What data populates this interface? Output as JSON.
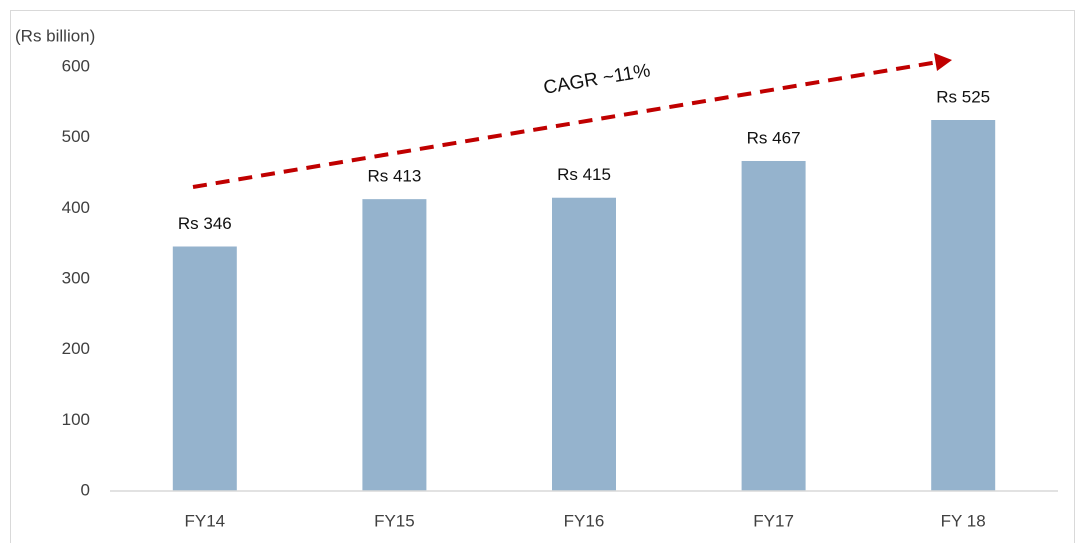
{
  "chart_data": {
    "type": "bar",
    "y_axis_label": "(Rs billion)",
    "annotation": "CAGR ~11%",
    "categories": [
      "FY14",
      "FY15",
      "FY16",
      "FY17",
      "FY 18"
    ],
    "values": [
      346,
      413,
      415,
      467,
      525
    ],
    "value_labels": [
      "Rs 346",
      "Rs 413",
      "Rs 415",
      "Rs 467",
      "Rs 525"
    ],
    "color": "#95b3cd",
    "ylim": [
      0,
      600
    ],
    "yticks": [
      0,
      100,
      200,
      300,
      400,
      500,
      600
    ],
    "grid": false
  }
}
